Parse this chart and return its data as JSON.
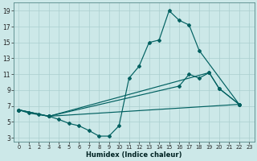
{
  "xlabel": "Humidex (Indice chaleur)",
  "bg_color": "#cce8e8",
  "line_color": "#006060",
  "grid_color": "#aacfcf",
  "xlim": [
    -0.5,
    23.5
  ],
  "ylim": [
    2.5,
    20.0
  ],
  "xticks": [
    0,
    1,
    2,
    3,
    4,
    5,
    6,
    7,
    8,
    9,
    10,
    11,
    12,
    13,
    14,
    15,
    16,
    17,
    18,
    19,
    20,
    21,
    22,
    23
  ],
  "yticks": [
    3,
    5,
    7,
    9,
    11,
    13,
    15,
    17,
    19
  ],
  "line1_x": [
    0,
    1,
    2,
    3,
    4,
    5,
    6,
    7,
    8,
    9,
    10,
    11,
    12,
    13,
    14,
    15,
    16,
    17,
    18,
    22
  ],
  "line1_y": [
    6.5,
    6.1,
    5.9,
    5.7,
    5.3,
    4.8,
    4.5,
    3.9,
    3.2,
    3.2,
    4.5,
    10.5,
    12.0,
    15.0,
    15.3,
    19.0,
    17.8,
    17.2,
    14.0,
    7.2
  ],
  "line2_x": [
    0,
    3,
    19,
    20,
    22
  ],
  "line2_y": [
    6.5,
    5.7,
    11.2,
    9.2,
    7.2
  ],
  "line3_x": [
    0,
    3,
    22
  ],
  "line3_y": [
    6.5,
    5.7,
    7.2
  ],
  "line4_x": [
    0,
    3,
    16,
    17,
    18,
    19,
    20,
    22
  ],
  "line4_y": [
    6.5,
    5.7,
    9.5,
    11.0,
    10.5,
    11.2,
    9.2,
    7.2
  ]
}
